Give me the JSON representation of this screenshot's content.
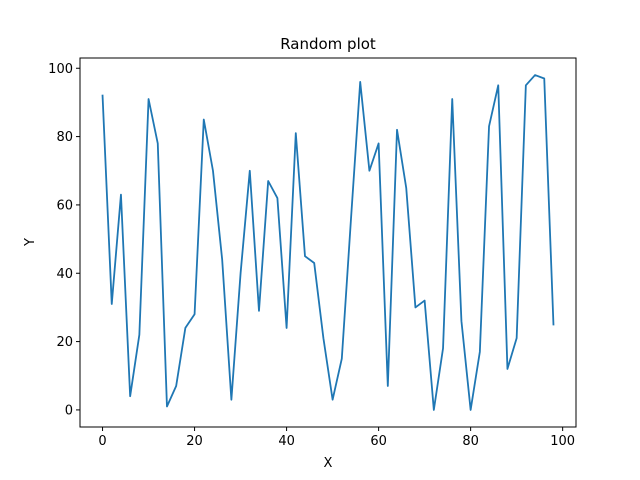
{
  "chart_data": {
    "type": "line",
    "title": "Random plot",
    "xlabel": "X",
    "ylabel": "Y",
    "xlim": [
      -4.9,
      102.9
    ],
    "ylim": [
      -5,
      103
    ],
    "xticks": [
      0,
      20,
      40,
      60,
      80,
      100
    ],
    "yticks": [
      0,
      20,
      40,
      60,
      80,
      100
    ],
    "grid": false,
    "line_color": "#1f77b4",
    "series": [
      {
        "x": [
          0,
          2,
          4,
          6,
          8,
          10,
          12,
          14,
          16,
          18,
          20,
          22,
          24,
          26,
          28,
          30,
          32,
          34,
          36,
          38,
          40,
          42,
          44,
          46,
          48,
          50,
          52,
          54,
          56,
          58,
          60,
          62,
          64,
          66,
          68,
          70,
          72,
          74,
          76,
          78,
          80,
          82,
          84,
          86,
          88,
          90,
          92,
          94,
          96,
          98
        ],
        "values": [
          92,
          31,
          63,
          4,
          22,
          91,
          78,
          1,
          7,
          24,
          28,
          85,
          70,
          44,
          3,
          40,
          70,
          29,
          67,
          62,
          24,
          81,
          45,
          43,
          21,
          3,
          15,
          56,
          96,
          70,
          78,
          7,
          82,
          65,
          30,
          32,
          0,
          18,
          91,
          26,
          0,
          17,
          83,
          95,
          12,
          21,
          95,
          98,
          97,
          25
        ]
      }
    ]
  }
}
